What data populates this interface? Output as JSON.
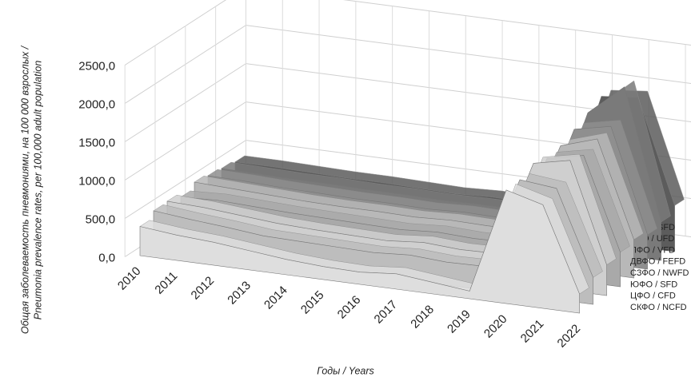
{
  "chart_data": {
    "type": "area3d",
    "y_label_lines": [
      "Общая заболеваемость пневмониями, на 100 000 взрослых /",
      "Pneumonia prevalence rates, per 100,000 adult population"
    ],
    "x_label": "Годы / Years",
    "categories": [
      "2010",
      "2011",
      "2012",
      "2013",
      "2014",
      "2015",
      "2016",
      "2017",
      "2018",
      "2019",
      "2020",
      "2021",
      "2022"
    ],
    "ylim": [
      0,
      2500
    ],
    "yticks": [
      {
        "value": 0,
        "label": "0,0"
      },
      {
        "value": 500,
        "label": "500,0"
      },
      {
        "value": 1000,
        "label": "1000,0"
      },
      {
        "value": 1500,
        "label": "1500,0"
      },
      {
        "value": 2000,
        "label": "2000,0"
      },
      {
        "value": 2500,
        "label": "2500,0"
      }
    ],
    "grid": true,
    "series": [
      {
        "name": "СКФО / NCFD",
        "color": "#dedede",
        "values": [
          380,
          330,
          300,
          250,
          200,
          170,
          160,
          200,
          150,
          100,
          1480,
          1350,
          250
        ]
      },
      {
        "name": "ЦФО / CFD",
        "color": "#bdbdbd",
        "values": [
          470,
          420,
          380,
          330,
          320,
          310,
          300,
          330,
          300,
          310,
          1500,
          1450,
          350
        ]
      },
      {
        "name": "ЮФО / SFD",
        "color": "#cfcfcf",
        "values": [
          480,
          460,
          420,
          380,
          360,
          350,
          340,
          380,
          350,
          360,
          1600,
          1700,
          400
        ]
      },
      {
        "name": "СЗФО / NWFD",
        "color": "#a9a9a9",
        "values": [
          420,
          440,
          420,
          400,
          390,
          380,
          370,
          400,
          380,
          390,
          1550,
          1650,
          450
        ]
      },
      {
        "name": "ДВФО / FEFD",
        "color": "#b8b8b8",
        "values": [
          500,
          480,
          460,
          440,
          430,
          430,
          420,
          440,
          430,
          440,
          1600,
          1750,
          500
        ]
      },
      {
        "name": "ПФО / VFD",
        "color": "#8f8f8f",
        "values": [
          470,
          460,
          440,
          430,
          420,
          420,
          410,
          430,
          420,
          430,
          1700,
          1800,
          450
        ]
      },
      {
        "name": "УФО / UFD",
        "color": "#7a7a7a",
        "values": [
          450,
          440,
          430,
          430,
          420,
          420,
          410,
          420,
          420,
          430,
          1800,
          2200,
          500
        ]
      },
      {
        "name": "СФО / SFD",
        "color": "#5c5c5c",
        "values": [
          420,
          420,
          410,
          400,
          400,
          390,
          380,
          400,
          390,
          400,
          1900,
          1950,
          600
        ]
      }
    ]
  }
}
